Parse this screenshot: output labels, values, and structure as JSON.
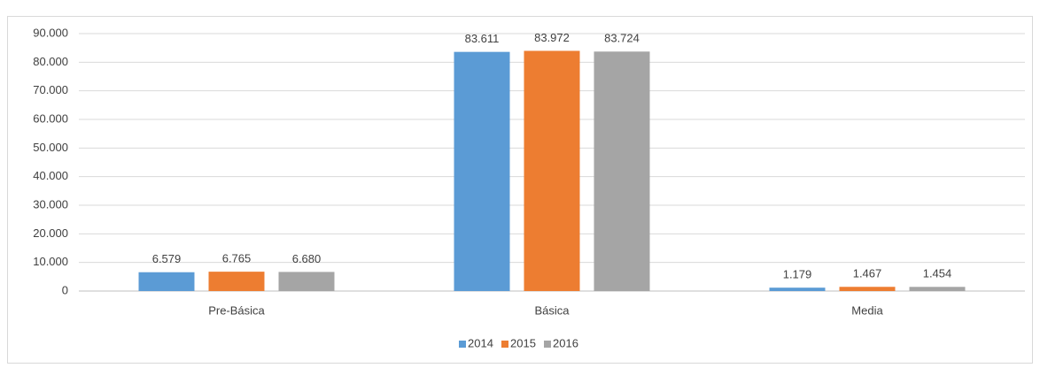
{
  "chart_data": {
    "type": "bar",
    "categories": [
      "Pre-Básica",
      "Básica",
      "Media"
    ],
    "series": [
      {
        "name": "2014",
        "color": "#5b9bd5",
        "values": [
          6579,
          83611,
          1179
        ],
        "value_labels": [
          "6.579",
          "83.611",
          "1.179"
        ]
      },
      {
        "name": "2015",
        "color": "#ed7d31",
        "values": [
          6765,
          83972,
          1467
        ],
        "value_labels": [
          "6.765",
          "83.972",
          "1.467"
        ]
      },
      {
        "name": "2016",
        "color": "#a5a5a5",
        "values": [
          6680,
          83724,
          1454
        ],
        "value_labels": [
          "6.680",
          "83.724",
          "1.454"
        ]
      }
    ],
    "ylim": [
      0,
      90000
    ],
    "yticks": [
      0,
      {
        "value": 10000,
        "label": "10.000"
      },
      {
        "value": 20000,
        "label": "20.000"
      },
      {
        "value": 30000,
        "label": "30.000"
      },
      {
        "value": 40000,
        "label": "40.000"
      },
      {
        "value": 50000,
        "label": "50.000"
      },
      {
        "value": 60000,
        "label": "60.000"
      },
      {
        "value": 70000,
        "label": "70.000"
      },
      {
        "value": 80000,
        "label": "80.000"
      },
      {
        "value": 90000,
        "label": "90.000"
      }
    ],
    "grid": true,
    "legend": "bottom"
  }
}
